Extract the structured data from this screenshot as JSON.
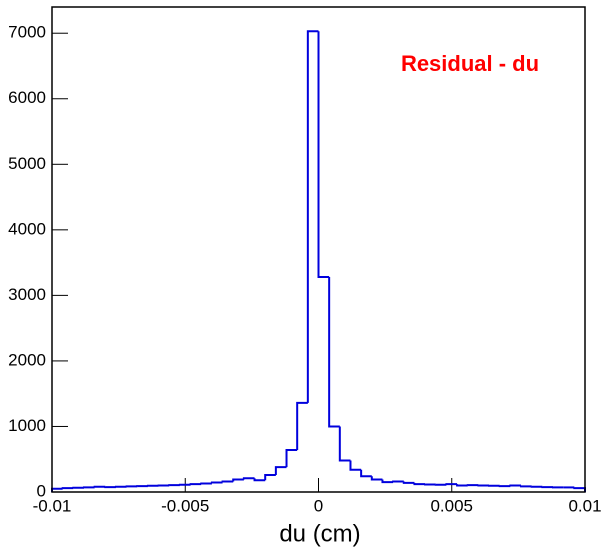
{
  "chart_data": {
    "type": "histogram",
    "title": "Residual - du",
    "xlabel": "du (cm)",
    "color": "#0000dd",
    "title_color": "#ff0000",
    "bins": [
      -0.01,
      -0.0096,
      -0.0092,
      -0.0088,
      -0.0084,
      -0.008,
      -0.0076,
      -0.0072,
      -0.0068,
      -0.0064,
      -0.006,
      -0.0056,
      -0.0052,
      -0.0048,
      -0.0044,
      -0.004,
      -0.0036,
      -0.0032,
      -0.0028,
      -0.0024,
      -0.002,
      -0.0016,
      -0.0012,
      -0.0008,
      -0.0004,
      0,
      0.0004,
      0.0008,
      0.0012,
      0.0016,
      0.002,
      0.0024,
      0.0028,
      0.0032,
      0.0036,
      0.004,
      0.0044,
      0.0048,
      0.0052,
      0.0056,
      0.006,
      0.0064,
      0.0068,
      0.0072,
      0.0076,
      0.008,
      0.0084,
      0.0088,
      0.0092,
      0.0096,
      0.01
    ],
    "values": [
      50,
      60,
      65,
      70,
      80,
      75,
      80,
      85,
      90,
      95,
      100,
      105,
      110,
      120,
      130,
      145,
      160,
      190,
      210,
      180,
      260,
      380,
      640,
      1360,
      7030,
      3280,
      1000,
      480,
      340,
      240,
      190,
      150,
      160,
      140,
      120,
      115,
      110,
      120,
      100,
      105,
      100,
      95,
      90,
      100,
      85,
      80,
      75,
      70,
      70,
      60
    ],
    "xlim": [
      -0.01,
      0.01
    ],
    "xticks": [
      -0.01,
      -0.005,
      0,
      0.005,
      0.01
    ],
    "ylim": [
      0,
      7400
    ],
    "yticks": [
      0,
      1000,
      2000,
      3000,
      4000,
      5000,
      6000,
      7000
    ]
  }
}
